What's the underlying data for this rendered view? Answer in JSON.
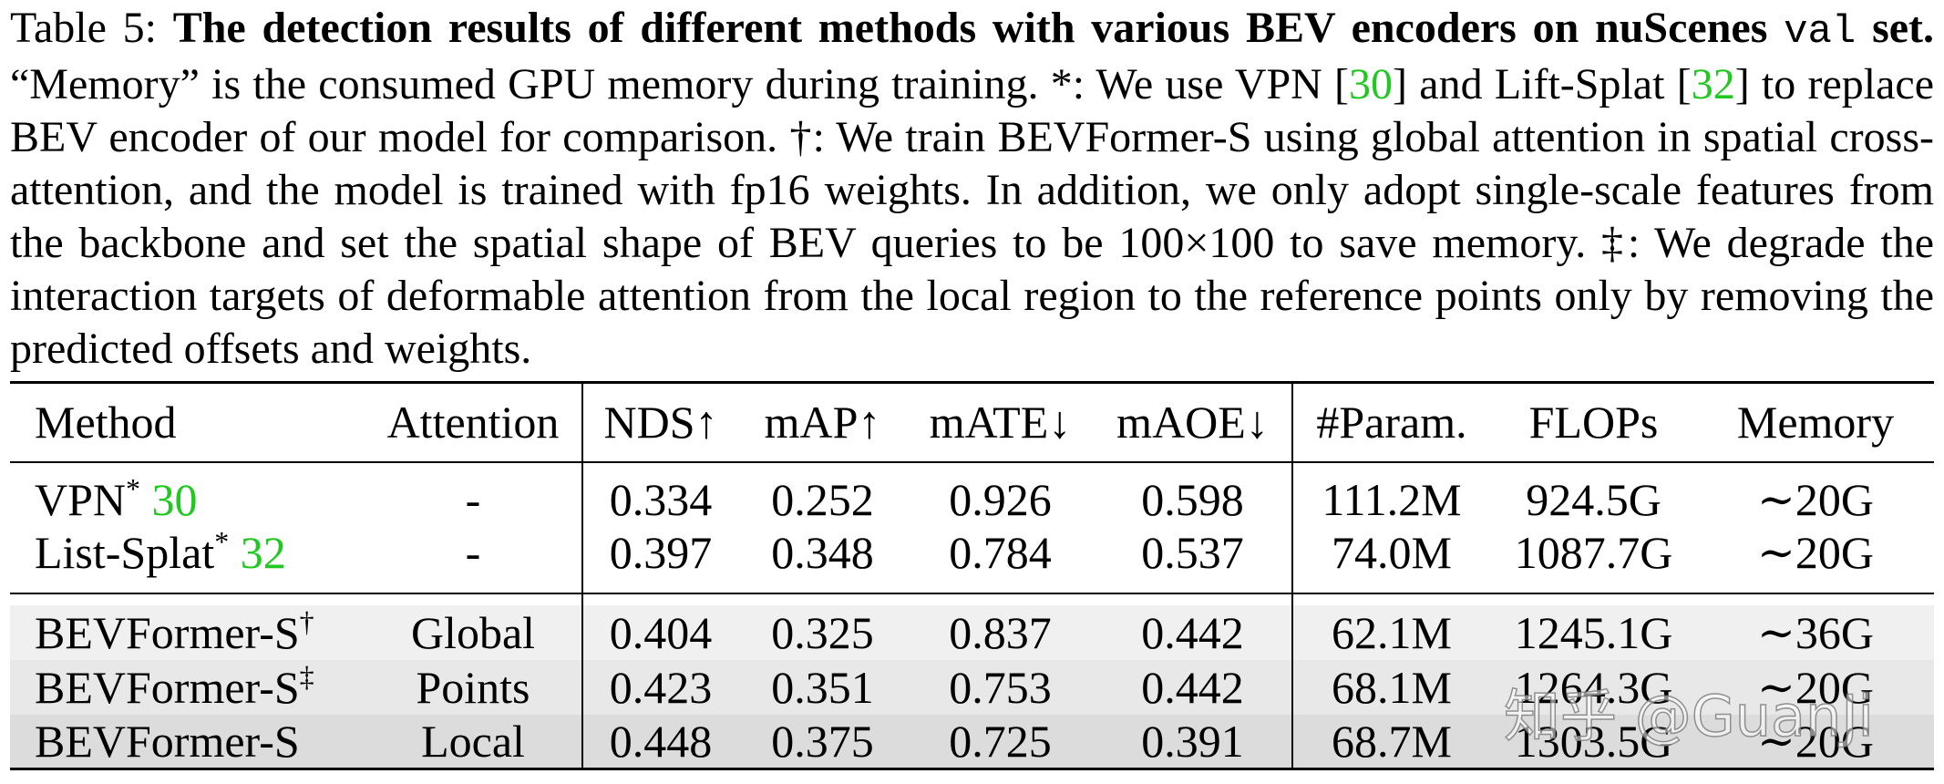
{
  "caption": {
    "label": "Table 5:",
    "title": "The detection results of different methods with various BEV encoders on nuScenes",
    "code": "val",
    "title_end": "set.",
    "body": [
      "“Memory” is the consumed GPU memory during training. *: We use VPN [",
      "] and Lift-Splat [",
      "] to replace BEV encoder of our model for comparison. †: We train BEVFormer-S using global attention in spatial cross-attention, and the model is trained with fp16 weights. In addition, we only adopt single-scale features from the backbone and set the spatial shape of BEV queries to be 100×100 to save memory. ‡: We degrade the interaction targets of deformable attention from the local region to the reference points only by removing the predicted offsets and weights."
    ],
    "cites": [
      "30",
      "32"
    ]
  },
  "table": {
    "header": [
      "Method",
      "Attention",
      "NDS↑",
      "mAP↑",
      "mATE↓",
      "mAOE↓",
      "#Param.",
      "FLOPs",
      "Memory"
    ],
    "rows": [
      {
        "method": {
          "name": "VPN",
          "mark": "*",
          "cite": "30"
        },
        "cells": [
          "-",
          "0.334",
          "0.252",
          "0.926",
          "0.598",
          "111.2M",
          "924.5G",
          "∼20G"
        ]
      },
      {
        "method": {
          "name": "List-Splat",
          "mark": "*",
          "cite": "32"
        },
        "cells": [
          "-",
          "0.397",
          "0.348",
          "0.784",
          "0.537",
          "74.0M",
          "1087.7G",
          "∼20G"
        ]
      },
      {
        "method": {
          "name": "BEVFormer-S",
          "mark": "†"
        },
        "cells": [
          "Global",
          "0.404",
          "0.325",
          "0.837",
          "0.442",
          "62.1M",
          "1245.1G",
          "∼36G"
        ]
      },
      {
        "method": {
          "name": "BEVFormer-S",
          "mark": "‡"
        },
        "cells": [
          "Points",
          "0.423",
          "0.351",
          "0.753",
          "0.442",
          "68.1M",
          "1264.3G",
          "∼20G"
        ]
      },
      {
        "method": {
          "name": "BEVFormer-S"
        },
        "cells": [
          "Local",
          "0.448",
          "0.375",
          "0.725",
          "0.391",
          "68.7M",
          "1303.5G",
          "∼20G"
        ]
      }
    ]
  },
  "watermark": "知乎 @GuanJi"
}
